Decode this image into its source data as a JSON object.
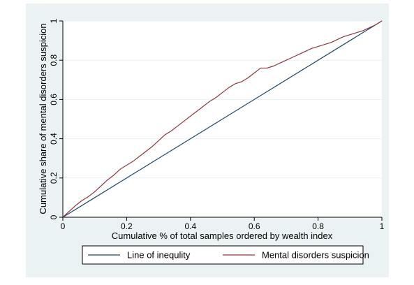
{
  "chart_data": {
    "type": "line",
    "title": "",
    "xlabel": "Cumulative % of total samples ordered by wealth index",
    "ylabel": "Cumulative share of mental disorders suspicion",
    "xlim": [
      0,
      1
    ],
    "ylim": [
      0,
      1
    ],
    "x_ticks": [
      0,
      0.2,
      0.4,
      0.6,
      0.8,
      1
    ],
    "y_ticks": [
      0,
      0.2,
      0.4,
      0.6,
      0.8,
      1
    ],
    "x_tick_labels": [
      "0",
      "0.2",
      "0.4",
      "0.6",
      "0.8",
      "1"
    ],
    "y_tick_labels": [
      "0",
      "0.2",
      "0.4",
      "0.6",
      "0.8",
      "1"
    ],
    "grid": "horizontal",
    "legend_position": "bottom",
    "series": [
      {
        "name": "Line of inequlity",
        "color": "#1a476f",
        "x": [
          0,
          1
        ],
        "y": [
          0,
          1
        ]
      },
      {
        "name": "Mental disorders suspicion",
        "color": "#90353b",
        "x": [
          0,
          0.02,
          0.04,
          0.06,
          0.08,
          0.1,
          0.12,
          0.14,
          0.16,
          0.18,
          0.2,
          0.22,
          0.24,
          0.26,
          0.28,
          0.3,
          0.32,
          0.34,
          0.36,
          0.38,
          0.4,
          0.42,
          0.44,
          0.46,
          0.48,
          0.5,
          0.52,
          0.54,
          0.56,
          0.58,
          0.6,
          0.62,
          0.64,
          0.66,
          0.68,
          0.7,
          0.72,
          0.74,
          0.76,
          0.78,
          0.8,
          0.82,
          0.84,
          0.86,
          0.88,
          0.9,
          0.92,
          0.94,
          0.96,
          0.98,
          1
        ],
        "y": [
          0,
          0.03,
          0.06,
          0.085,
          0.105,
          0.13,
          0.16,
          0.19,
          0.215,
          0.245,
          0.265,
          0.285,
          0.31,
          0.335,
          0.36,
          0.39,
          0.42,
          0.44,
          0.465,
          0.49,
          0.515,
          0.54,
          0.565,
          0.59,
          0.61,
          0.635,
          0.66,
          0.68,
          0.69,
          0.71,
          0.735,
          0.76,
          0.76,
          0.77,
          0.785,
          0.8,
          0.815,
          0.83,
          0.845,
          0.86,
          0.87,
          0.88,
          0.89,
          0.905,
          0.92,
          0.93,
          0.94,
          0.95,
          0.965,
          0.98,
          1
        ]
      }
    ]
  }
}
